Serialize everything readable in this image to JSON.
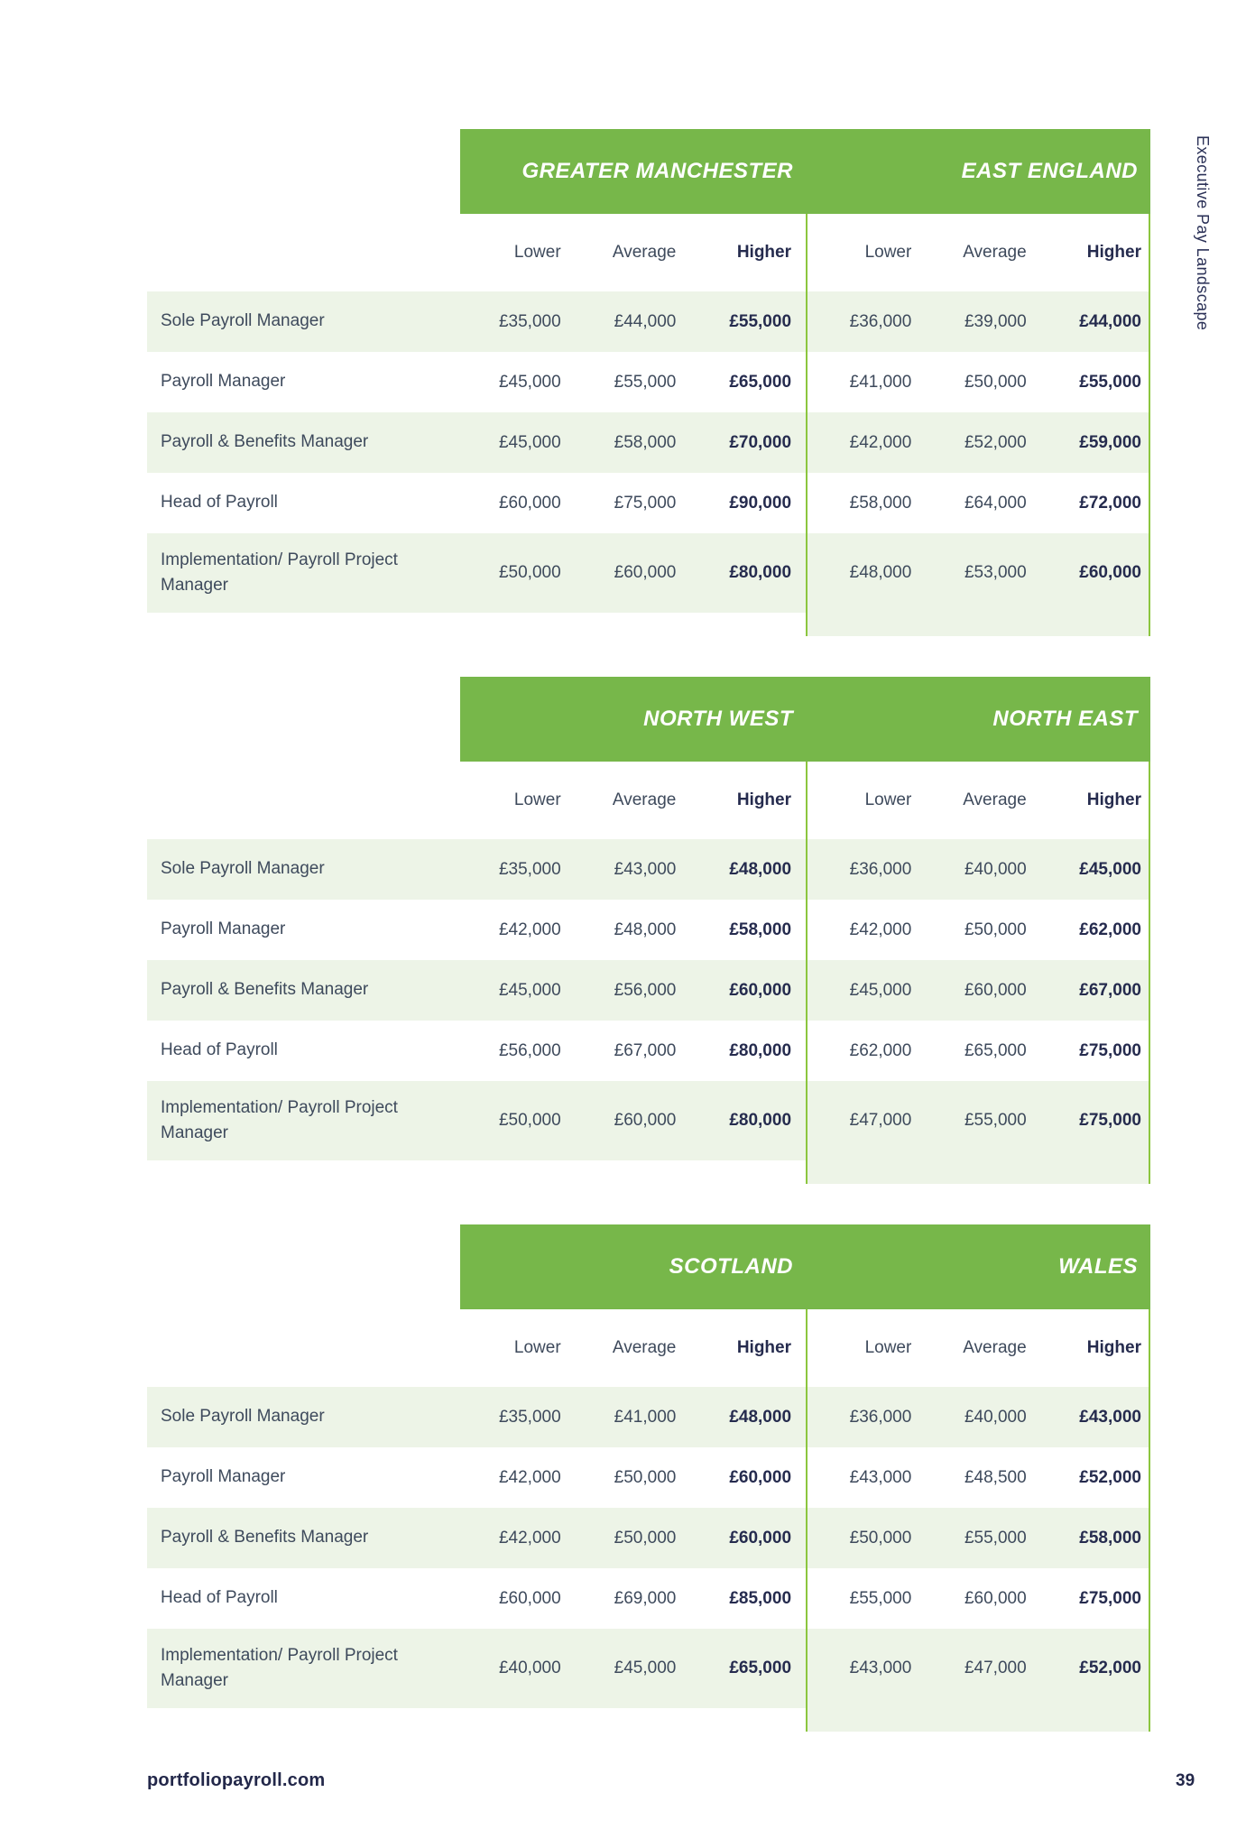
{
  "page": {
    "sidebar_label": "Executive Pay Landscape",
    "footer": {
      "website": "portfoliopayroll.com",
      "page_number": "39"
    }
  },
  "column_headers": [
    "Lower",
    "Average",
    "Higher"
  ],
  "tables": [
    {
      "region_left": "GREATER MANCHESTER",
      "region_right": "EAST ENGLAND",
      "rows": [
        {
          "label": "Sole Payroll Manager",
          "left": [
            "£35,000",
            "£44,000",
            "£55,000"
          ],
          "right": [
            "£36,000",
            "£39,000",
            "£44,000"
          ]
        },
        {
          "label": "Payroll Manager",
          "left": [
            "£45,000",
            "£55,000",
            "£65,000"
          ],
          "right": [
            "£41,000",
            "£50,000",
            "£55,000"
          ]
        },
        {
          "label": "Payroll & Benefits Manager",
          "left": [
            "£45,000",
            "£58,000",
            "£70,000"
          ],
          "right": [
            "£42,000",
            "£52,000",
            "£59,000"
          ]
        },
        {
          "label": "Head of Payroll",
          "left": [
            "£60,000",
            "£75,000",
            "£90,000"
          ],
          "right": [
            "£58,000",
            "£64,000",
            "£72,000"
          ]
        },
        {
          "label": "Implementation/ Payroll Project Manager",
          "left": [
            "£50,000",
            "£60,000",
            "£80,000"
          ],
          "right": [
            "£48,000",
            "£53,000",
            "£60,000"
          ]
        }
      ]
    },
    {
      "region_left": "NORTH WEST",
      "region_right": "NORTH EAST",
      "rows": [
        {
          "label": "Sole Payroll Manager",
          "left": [
            "£35,000",
            "£43,000",
            "£48,000"
          ],
          "right": [
            "£36,000",
            "£40,000",
            "£45,000"
          ]
        },
        {
          "label": "Payroll Manager",
          "left": [
            "£42,000",
            "£48,000",
            "£58,000"
          ],
          "right": [
            "£42,000",
            "£50,000",
            "£62,000"
          ]
        },
        {
          "label": "Payroll & Benefits Manager",
          "left": [
            "£45,000",
            "£56,000",
            "£60,000"
          ],
          "right": [
            "£45,000",
            "£60,000",
            "£67,000"
          ]
        },
        {
          "label": "Head of Payroll",
          "left": [
            "£56,000",
            "£67,000",
            "£80,000"
          ],
          "right": [
            "£62,000",
            "£65,000",
            "£75,000"
          ]
        },
        {
          "label": "Implementation/ Payroll Project Manager",
          "left": [
            "£50,000",
            "£60,000",
            "£80,000"
          ],
          "right": [
            "£47,000",
            "£55,000",
            "£75,000"
          ]
        }
      ]
    },
    {
      "region_left": "SCOTLAND",
      "region_right": "WALES",
      "rows": [
        {
          "label": "Sole Payroll Manager",
          "left": [
            "£35,000",
            "£41,000",
            "£48,000"
          ],
          "right": [
            "£36,000",
            "£40,000",
            "£43,000"
          ]
        },
        {
          "label": "Payroll Manager",
          "left": [
            "£42,000",
            "£50,000",
            "£60,000"
          ],
          "right": [
            "£43,000",
            "£48,500",
            "£52,000"
          ]
        },
        {
          "label": "Payroll & Benefits Manager",
          "left": [
            "£42,000",
            "£50,000",
            "£60,000"
          ],
          "right": [
            "£50,000",
            "£55,000",
            "£58,000"
          ]
        },
        {
          "label": "Head of Payroll",
          "left": [
            "£60,000",
            "£69,000",
            "£85,000"
          ],
          "right": [
            "£55,000",
            "£60,000",
            "£75,000"
          ]
        },
        {
          "label": "Implementation/ Payroll Project Manager",
          "left": [
            "£40,000",
            "£45,000",
            "£65,000"
          ],
          "right": [
            "£43,000",
            "£47,000",
            "£52,000"
          ]
        }
      ]
    }
  ],
  "colors": {
    "header_green": "#77b74a",
    "row_stripe_green": "#edf4e7",
    "line_green": "#8cc63f",
    "navy_bold_text": "#252b4e",
    "body_text": "#3e4a5c"
  }
}
